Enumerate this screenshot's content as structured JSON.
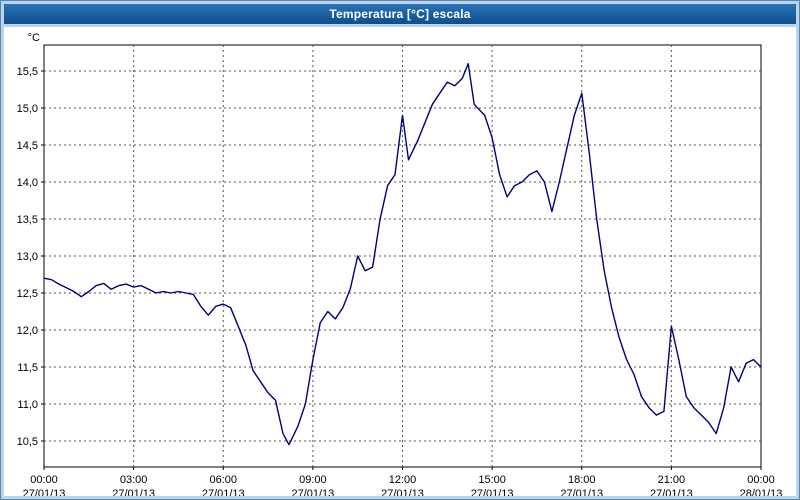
{
  "window": {
    "title": "Temperatura [°C] escala"
  },
  "chart_data": {
    "type": "line",
    "title": "Temperatura [°C] escala",
    "unit_label": "°C",
    "line_color": "#000080",
    "grid_color": "#555555",
    "ylim": [
      10.5,
      15.5
    ],
    "xlim_hours": [
      0,
      24
    ],
    "grid": true,
    "legend_position": "none",
    "yticks": [
      {
        "value": 15.5,
        "label": "15,5"
      },
      {
        "value": 15.0,
        "label": "15,0"
      },
      {
        "value": 14.5,
        "label": "14,5"
      },
      {
        "value": 14.0,
        "label": "14,0"
      },
      {
        "value": 13.5,
        "label": "13,5"
      },
      {
        "value": 13.0,
        "label": "13,0"
      },
      {
        "value": 12.5,
        "label": "12,5"
      },
      {
        "value": 12.0,
        "label": "12,0"
      },
      {
        "value": 11.5,
        "label": "11,5"
      },
      {
        "value": 11.0,
        "label": "11,0"
      },
      {
        "value": 10.5,
        "label": "10,5"
      }
    ],
    "xticks": [
      {
        "hour": 0,
        "time": "00:00",
        "date": "27/01/13"
      },
      {
        "hour": 3,
        "time": "03:00",
        "date": "27/01/13"
      },
      {
        "hour": 6,
        "time": "06:00",
        "date": "27/01/13"
      },
      {
        "hour": 9,
        "time": "09:00",
        "date": "27/01/13"
      },
      {
        "hour": 12,
        "time": "12:00",
        "date": "27/01/13"
      },
      {
        "hour": 15,
        "time": "15:00",
        "date": "27/01/13"
      },
      {
        "hour": 18,
        "time": "18:00",
        "date": "27/01/13"
      },
      {
        "hour": 21,
        "time": "21:00",
        "date": "27/01/13"
      },
      {
        "hour": 24,
        "time": "00:00",
        "date": "28/01/13"
      }
    ],
    "series": [
      {
        "name": "Temperatura",
        "points": [
          [
            0.0,
            12.7
          ],
          [
            0.25,
            12.68
          ],
          [
            0.5,
            12.62
          ],
          [
            0.75,
            12.57
          ],
          [
            1.0,
            12.52
          ],
          [
            1.25,
            12.45
          ],
          [
            1.5,
            12.52
          ],
          [
            1.75,
            12.6
          ],
          [
            2.0,
            12.63
          ],
          [
            2.25,
            12.55
          ],
          [
            2.5,
            12.6
          ],
          [
            2.75,
            12.62
          ],
          [
            3.0,
            12.58
          ],
          [
            3.25,
            12.6
          ],
          [
            3.5,
            12.55
          ],
          [
            3.75,
            12.5
          ],
          [
            4.0,
            12.52
          ],
          [
            4.25,
            12.5
          ],
          [
            4.5,
            12.52
          ],
          [
            4.75,
            12.5
          ],
          [
            5.0,
            12.48
          ],
          [
            5.25,
            12.32
          ],
          [
            5.5,
            12.2
          ],
          [
            5.75,
            12.32
          ],
          [
            6.0,
            12.35
          ],
          [
            6.25,
            12.3
          ],
          [
            6.5,
            12.05
          ],
          [
            6.75,
            11.8
          ],
          [
            7.0,
            11.45
          ],
          [
            7.25,
            11.3
          ],
          [
            7.5,
            11.15
          ],
          [
            7.75,
            11.05
          ],
          [
            8.0,
            10.6
          ],
          [
            8.2,
            10.45
          ],
          [
            8.5,
            10.7
          ],
          [
            8.75,
            11.0
          ],
          [
            9.0,
            11.6
          ],
          [
            9.25,
            12.1
          ],
          [
            9.5,
            12.25
          ],
          [
            9.75,
            12.15
          ],
          [
            10.0,
            12.3
          ],
          [
            10.25,
            12.55
          ],
          [
            10.5,
            13.0
          ],
          [
            10.75,
            12.8
          ],
          [
            11.0,
            12.85
          ],
          [
            11.25,
            13.5
          ],
          [
            11.5,
            13.95
          ],
          [
            11.75,
            14.1
          ],
          [
            12.0,
            14.9
          ],
          [
            12.2,
            14.3
          ],
          [
            12.5,
            14.55
          ],
          [
            12.75,
            14.8
          ],
          [
            13.0,
            15.05
          ],
          [
            13.25,
            15.2
          ],
          [
            13.5,
            15.35
          ],
          [
            13.75,
            15.3
          ],
          [
            14.0,
            15.4
          ],
          [
            14.2,
            15.6
          ],
          [
            14.4,
            15.05
          ],
          [
            14.75,
            14.9
          ],
          [
            15.0,
            14.6
          ],
          [
            15.25,
            14.1
          ],
          [
            15.5,
            13.8
          ],
          [
            15.75,
            13.95
          ],
          [
            16.0,
            14.0
          ],
          [
            16.25,
            14.1
          ],
          [
            16.5,
            14.15
          ],
          [
            16.75,
            14.0
          ],
          [
            17.0,
            13.6
          ],
          [
            17.25,
            14.0
          ],
          [
            17.5,
            14.45
          ],
          [
            17.75,
            14.9
          ],
          [
            18.0,
            15.2
          ],
          [
            18.25,
            14.4
          ],
          [
            18.5,
            13.5
          ],
          [
            18.75,
            12.8
          ],
          [
            19.0,
            12.3
          ],
          [
            19.25,
            11.9
          ],
          [
            19.5,
            11.6
          ],
          [
            19.75,
            11.4
          ],
          [
            20.0,
            11.1
          ],
          [
            20.25,
            10.95
          ],
          [
            20.5,
            10.85
          ],
          [
            20.75,
            10.9
          ],
          [
            21.0,
            12.05
          ],
          [
            21.25,
            11.6
          ],
          [
            21.5,
            11.1
          ],
          [
            21.75,
            10.95
          ],
          [
            22.0,
            10.85
          ],
          [
            22.25,
            10.75
          ],
          [
            22.5,
            10.6
          ],
          [
            22.75,
            10.95
          ],
          [
            23.0,
            11.5
          ],
          [
            23.25,
            11.3
          ],
          [
            23.5,
            11.55
          ],
          [
            23.75,
            11.6
          ],
          [
            24.0,
            11.5
          ]
        ]
      }
    ]
  }
}
